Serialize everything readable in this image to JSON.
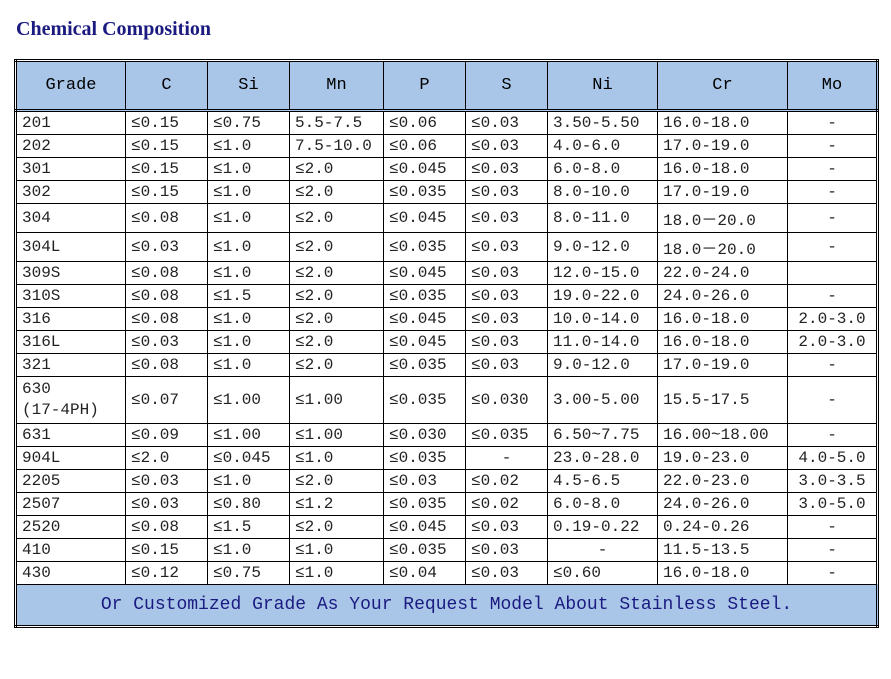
{
  "title": "Chemical Composition",
  "footer": "Or Customized Grade As Your Request Model About Stainless Steel.",
  "columns": [
    "Grade",
    "C",
    "Si",
    "Mn",
    "P",
    "S",
    "Ni",
    "Cr",
    "Mo"
  ],
  "column_classes": [
    "col-grade",
    "col-c",
    "col-si",
    "col-mn",
    "col-p",
    "col-s",
    "col-ni",
    "col-cr",
    "col-mo"
  ],
  "rows": [
    {
      "grade": "201",
      "c": "≤0.15",
      "si": "≤0.75",
      "mn": "5.5-7.5",
      "p": "≤0.06",
      "s": "≤0.03",
      "ni": "3.50-5.50",
      "cr": "16.0-18.0",
      "mo": "-"
    },
    {
      "grade": "202",
      "c": "≤0.15",
      "si": "≤1.0",
      "mn": "7.5-10.0",
      "p": "≤0.06",
      "s": "≤0.03",
      "ni": "4.0-6.0",
      "cr": "17.0-19.0",
      "mo": "-"
    },
    {
      "grade": "301",
      "c": "≤0.15",
      "si": "≤1.0",
      "mn": "≤2.0",
      "p": "≤0.045",
      "s": "≤0.03",
      "ni": "6.0-8.0",
      "cr": "16.0-18.0",
      "mo": "-"
    },
    {
      "grade": "302",
      "c": "≤0.15",
      "si": "≤1.0",
      "mn": "≤2.0",
      "p": "≤0.035",
      "s": "≤0.03",
      "ni": "8.0-10.0",
      "cr": "17.0-19.0",
      "mo": "-"
    },
    {
      "grade": "304",
      "c": "≤0.08",
      "si": "≤1.0",
      "mn": "≤2.0",
      "p": "≤0.045",
      "s": "≤0.03",
      "ni": "8.0-11.0",
      "cr": "18.0－20.0",
      "mo": "-"
    },
    {
      "grade": "304L",
      "c": "≤0.03",
      "si": "≤1.0",
      "mn": "≤2.0",
      "p": "≤0.035",
      "s": "≤0.03",
      "ni": "9.0-12.0",
      "cr": "18.0－20.0",
      "mo": "-"
    },
    {
      "grade": "309S",
      "c": "≤0.08",
      "si": "≤1.0",
      "mn": "≤2.0",
      "p": "≤0.045",
      "s": "≤0.03",
      "ni": "12.0-15.0",
      "cr": "22.0-24.0",
      "mo": ""
    },
    {
      "grade": "310S",
      "c": "≤0.08",
      "si": "≤1.5",
      "mn": "≤2.0",
      "p": "≤0.035",
      "s": "≤0.03",
      "ni": "19.0-22.0",
      "cr": "24.0-26.0",
      "mo": "-"
    },
    {
      "grade": "316",
      "c": "≤0.08",
      "si": "≤1.0",
      "mn": "≤2.0",
      "p": "≤0.045",
      "s": "≤0.03",
      "ni": "10.0-14.0",
      "cr": "16.0-18.0",
      "mo": "2.0-3.0"
    },
    {
      "grade": "316L",
      "c": "≤0.03",
      "si": "≤1.0",
      "mn": "≤2.0",
      "p": "≤0.045",
      "s": "≤0.03",
      "ni": "11.0-14.0",
      "cr": "16.0-18.0",
      "mo": "2.0-3.0"
    },
    {
      "grade": "321",
      "c": "≤0.08",
      "si": "≤1.0",
      "mn": "≤2.0",
      "p": "≤0.035",
      "s": "≤0.03",
      "ni": "9.0-12.0",
      "cr": "17.0-19.0",
      "mo": "-"
    },
    {
      "grade": "630\n(17-4PH)",
      "c": "≤0.07",
      "si": "≤1.00",
      "mn": "≤1.00",
      "p": "≤0.035",
      "s": "≤0.030",
      "ni": "3.00-5.00",
      "cr": "15.5-17.5",
      "mo": "-"
    },
    {
      "grade": "631",
      "c": "≤0.09",
      "si": "≤1.00",
      "mn": "≤1.00",
      "p": "≤0.030",
      "s": "≤0.035",
      "ni": "6.50~7.75",
      "cr": "16.00~18.00",
      "mo": "-"
    },
    {
      "grade": "904L",
      "c": "≤2.0",
      "si": "≤0.045",
      "mn": "≤1.0",
      "p": "≤0.035",
      "s": "-",
      "ni": "23.0-28.0",
      "cr": "19.0-23.0",
      "mo": "4.0-5.0"
    },
    {
      "grade": "2205",
      "c": "≤0.03",
      "si": "≤1.0",
      "mn": "≤2.0",
      "p": "≤0.03",
      "s": "≤0.02",
      "ni": "4.5-6.5",
      "cr": "22.0-23.0",
      "mo": "3.0-3.5"
    },
    {
      "grade": "2507",
      "c": "≤0.03",
      "si": "≤0.80",
      "mn": "≤1.2",
      "p": "≤0.035",
      "s": "≤0.02",
      "ni": "6.0-8.0",
      "cr": "24.0-26.0",
      "mo": "3.0-5.0"
    },
    {
      "grade": "2520",
      "c": "≤0.08",
      "si": "≤1.5",
      "mn": "≤2.0",
      "p": "≤0.045",
      "s": "≤0.03",
      "ni": "0.19-0.22",
      "cr": "0.24-0.26",
      "mo": "-"
    },
    {
      "grade": "410",
      "c": "≤0.15",
      "si": "≤1.0",
      "mn": "≤1.0",
      "p": "≤0.035",
      "s": "≤0.03",
      "ni": "-",
      "cr": "11.5-13.5",
      "mo": "-"
    },
    {
      "grade": "430",
      "c": "≤0.12",
      "si": "≤0.75",
      "mn": "≤1.0",
      "p": "≤0.04",
      "s": "≤0.03",
      "ni": "≤0.60",
      "cr": "16.0-18.0",
      "mo": "-"
    }
  ],
  "styling": {
    "header_bg": "#a9c6e8",
    "border_color": "#000000",
    "title_color": "#1a1a80",
    "font_family": "Courier New",
    "title_font_family": "Times New Roman",
    "le_symbol": "≤"
  }
}
